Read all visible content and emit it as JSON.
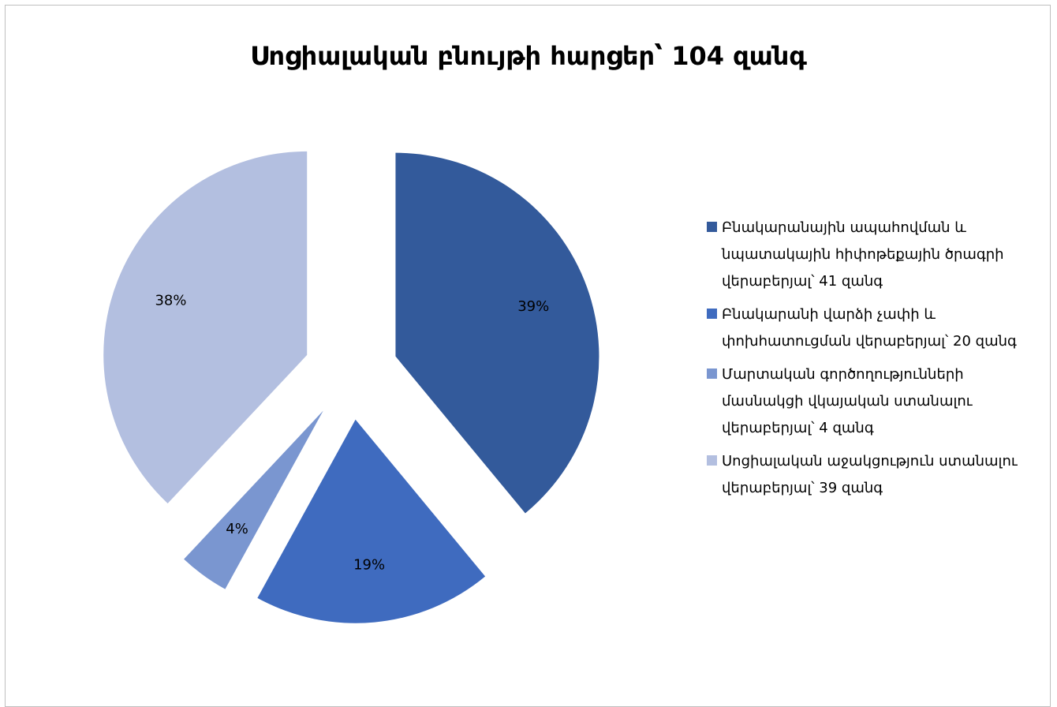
{
  "chart_data": {
    "type": "pie",
    "title": "Սոցիալական բնույթի հարցեր՝ 104 զանգ",
    "categories": [
      "Բնակարանային ապահովման և նպատակային հիփոթեքային ծրագրի վերաբերյալ՝ 41 զանգ",
      "Բնակարանի վարձի չափի և փոխհատուցման վերաբերյալ՝ 20 զանգ",
      "Մարտական գործողությունների մասնակցի վկայական ստանալու վերաբերյալ՝ 4 զանգ",
      "Սոցիալական աջակցություն ստանալու վերաբերյալ՝ 39 զանգ"
    ],
    "values": [
      39,
      19,
      4,
      38
    ],
    "value_labels": [
      "39%",
      "19%",
      "4%",
      "38%"
    ],
    "colors": [
      "#335a9b",
      "#3f6bbf",
      "#7a96d0",
      "#b3bfe0"
    ],
    "exploded": true,
    "legend": "right"
  }
}
